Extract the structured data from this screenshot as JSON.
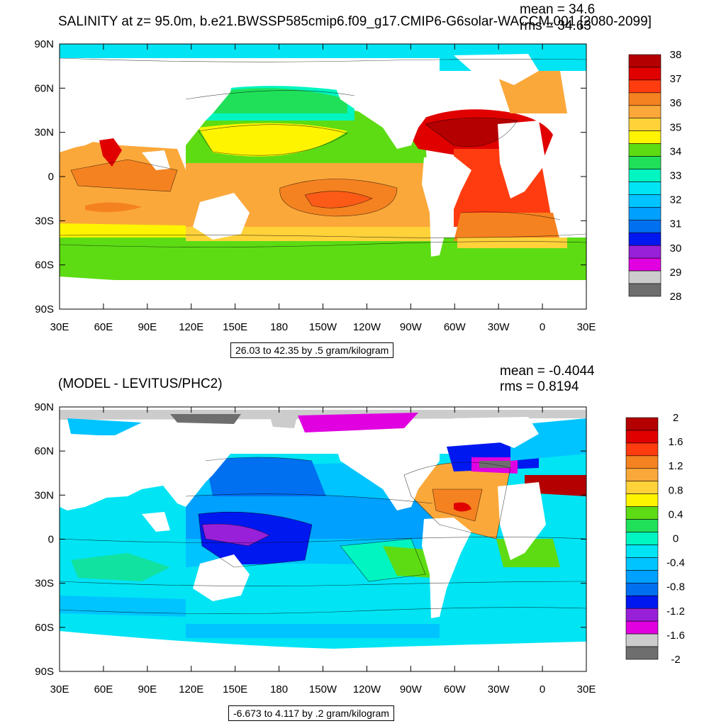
{
  "top": {
    "title": "SALINITY at z=  95.0m, b.e21.BWSSP585cmip6.f09_g17.CMIP6-G6solar-WACCM.001 [2080-2099]",
    "mean": "mean = 34.6",
    "rms": "rms = 34.63",
    "info": "26.03 to 42.35 by .5 gram/kilogram",
    "colorbar_labels": [
      "38",
      "37",
      "36",
      "35",
      "34",
      "33",
      "32",
      "31",
      "30",
      "29",
      "28"
    ],
    "colorbar_colors": [
      "#b40000",
      "#e00000",
      "#ff3c10",
      "#f58220",
      "#fba83a",
      "#ffd23a",
      "#fff400",
      "#5ddc14",
      "#20e05a",
      "#00f5c0",
      "#00e4f4",
      "#00c4ff",
      "#00a0ff",
      "#0070f0",
      "#0018f0",
      "#9820d8",
      "#e000e0",
      "#cccccc",
      "#6e6e6e"
    ]
  },
  "bottom": {
    "title": "(MODEL - LEVITUS/PHC2)",
    "mean": "mean = -0.4044",
    "rms": "rms = 0.8194",
    "info": "-6.673 to 4.117 by .2 gram/kilogram",
    "colorbar_labels": [
      "2",
      "1.6",
      "1.2",
      "0.8",
      "0.4",
      "0",
      "-0.4",
      "-0.8",
      "-1.2",
      "-1.6",
      "-2"
    ],
    "colorbar_colors": [
      "#b40000",
      "#e00000",
      "#ff3c10",
      "#f58220",
      "#fba83a",
      "#ffd23a",
      "#fff400",
      "#5ddc14",
      "#20e05a",
      "#00f5c0",
      "#00e4f4",
      "#00c4ff",
      "#00a0ff",
      "#0070f0",
      "#0018f0",
      "#9820d8",
      "#e000e0",
      "#cccccc",
      "#6e6e6e"
    ]
  },
  "chart_data": [
    {
      "type": "heatmap",
      "title": "SALINITY at z=  95.0m, b.e21.BWSSP585cmip6.f09_g17.CMIP6-G6solar-WACCM.001 [2080-2099]",
      "x_tick_labels": [
        "30E",
        "60E",
        "90E",
        "120E",
        "150E",
        "180",
        "150W",
        "120W",
        "90W",
        "60W",
        "30W",
        "0",
        "30E"
      ],
      "y_tick_labels": [
        "90N",
        "60N",
        "30N",
        "0",
        "30S",
        "60S",
        "90S"
      ],
      "colorbar_range": [
        28,
        38
      ],
      "mean": 34.6,
      "rms": 34.63
    },
    {
      "type": "heatmap",
      "title": "(MODEL - LEVITUS/PHC2)",
      "x_tick_labels": [
        "30E",
        "60E",
        "90E",
        "120E",
        "150E",
        "180",
        "150W",
        "120W",
        "90W",
        "60W",
        "30W",
        "0",
        "30E"
      ],
      "y_tick_labels": [
        "90N",
        "60N",
        "30N",
        "0",
        "30S",
        "60S",
        "90S"
      ],
      "colorbar_range": [
        -2,
        2
      ],
      "mean": -0.4044,
      "rms": 0.8194
    }
  ]
}
